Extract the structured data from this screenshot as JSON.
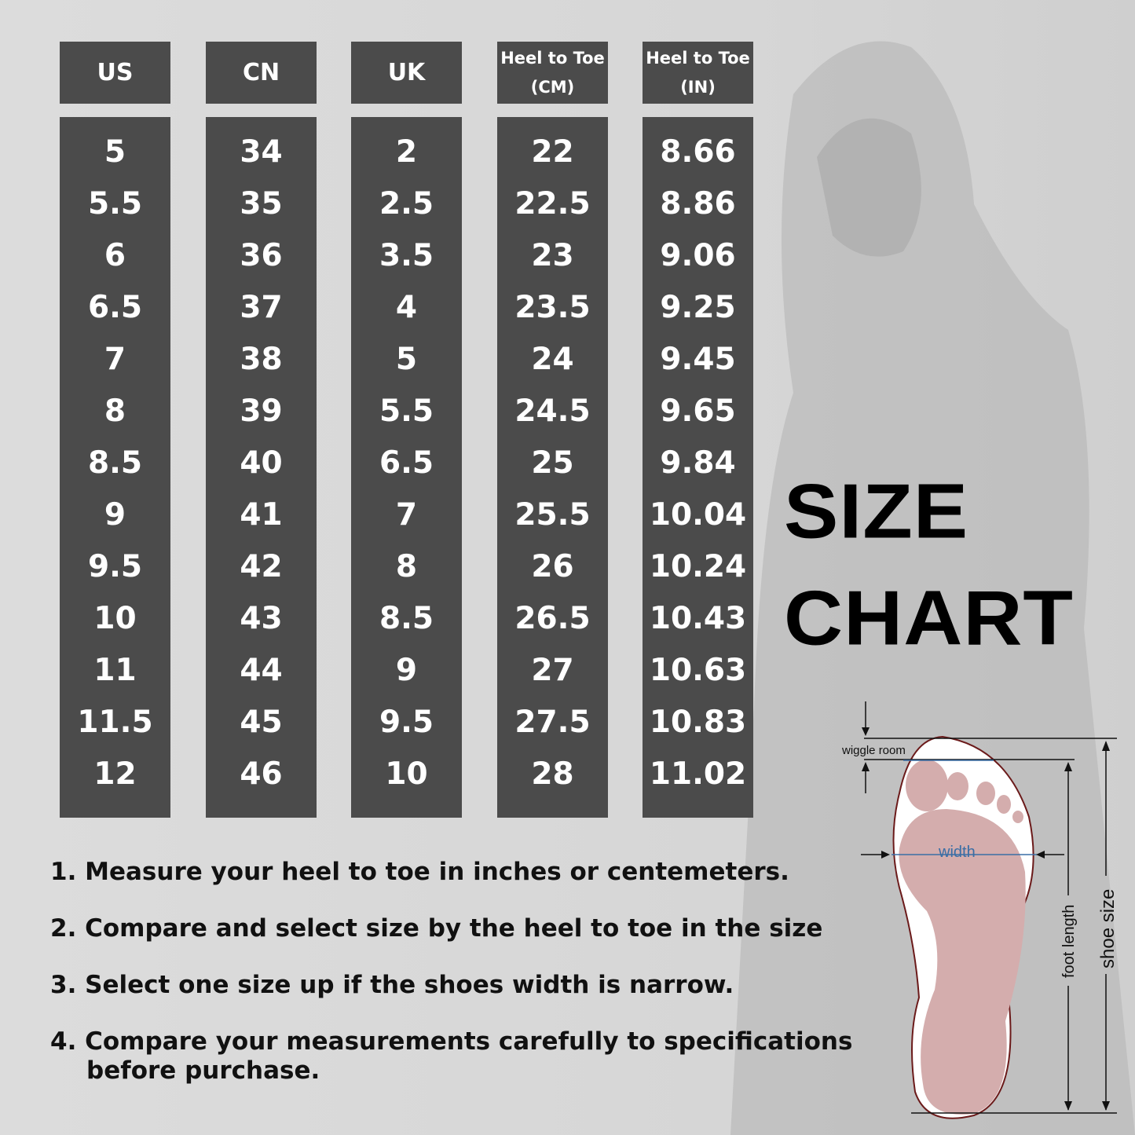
{
  "table": {
    "columns": [
      {
        "label": "US",
        "sub": ""
      },
      {
        "label": "CN",
        "sub": ""
      },
      {
        "label": "UK",
        "sub": ""
      },
      {
        "label": "Heel to Toe",
        "sub": "(CM)"
      },
      {
        "label": "Heel to Toe",
        "sub": "(IN)"
      }
    ],
    "rows": [
      [
        "5",
        "34",
        "2",
        "22",
        "8.66"
      ],
      [
        "5.5",
        "35",
        "2.5",
        "22.5",
        "8.86"
      ],
      [
        "6",
        "36",
        "3.5",
        "23",
        "9.06"
      ],
      [
        "6.5",
        "37",
        "4",
        "23.5",
        "9.25"
      ],
      [
        "7",
        "38",
        "5",
        "24",
        "9.45"
      ],
      [
        "8",
        "39",
        "5.5",
        "24.5",
        "9.65"
      ],
      [
        "8.5",
        "40",
        "6.5",
        "25",
        "9.84"
      ],
      [
        "9",
        "41",
        "7",
        "25.5",
        "10.04"
      ],
      [
        "9.5",
        "42",
        "8",
        "26",
        "10.24"
      ],
      [
        "10",
        "43",
        "8.5",
        "26.5",
        "10.43"
      ],
      [
        "11",
        "44",
        "9",
        "27",
        "10.63"
      ],
      [
        "11.5",
        "45",
        "9.5",
        "27.5",
        "10.83"
      ],
      [
        "12",
        "46",
        "10",
        "28",
        "11.02"
      ]
    ]
  },
  "title": {
    "line1": "SIZE",
    "line2": "CHART"
  },
  "notes": [
    {
      "text": "1. Measure your heel to toe in inches or centemeters.",
      "cont": ""
    },
    {
      "text": "2. Compare and select size by the heel to toe in the size",
      "cont": ""
    },
    {
      "text": "3. Select one size up if the shoes width is narrow.",
      "cont": ""
    },
    {
      "text": "4. Compare your measurements carefully to specifications",
      "cont": "before purchase."
    }
  ],
  "diagram": {
    "wiggle": "wiggle room",
    "width": "width",
    "foot_length": "foot length",
    "shoe_size": "shoe size"
  },
  "colors": {
    "background": "#dcdcdc",
    "box": "#4b4b4b",
    "foot": "#d4adad",
    "width_line": "#3a6ea5"
  }
}
